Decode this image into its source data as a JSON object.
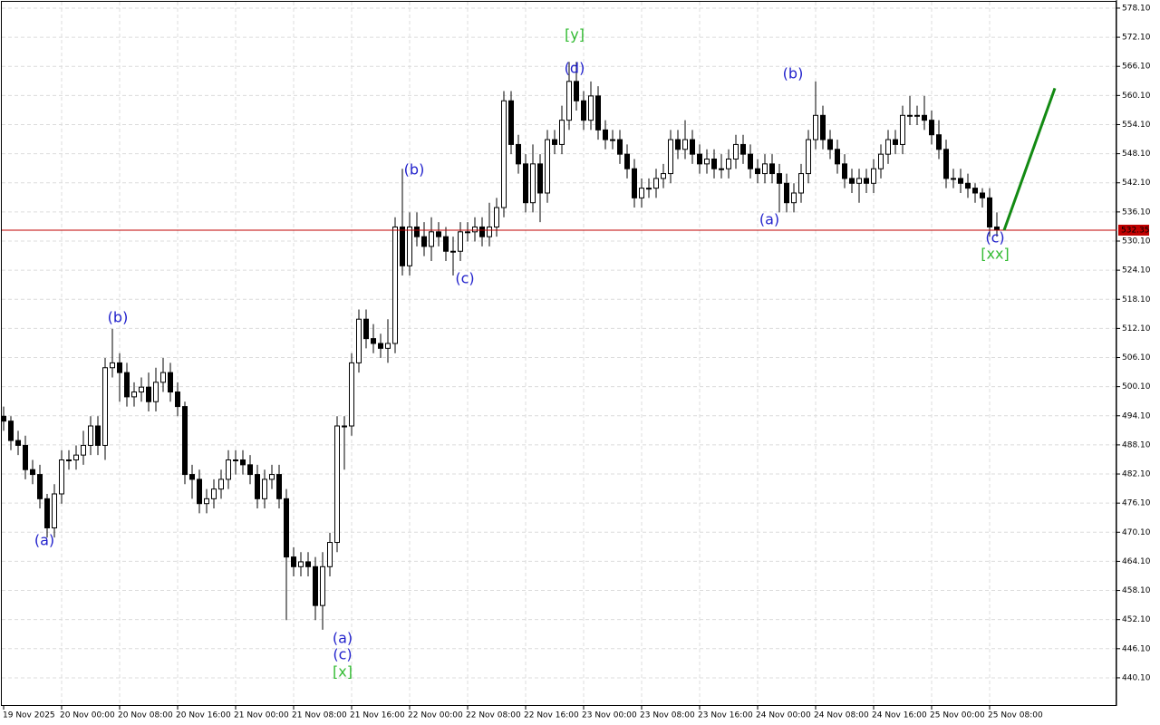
{
  "chart_data": {
    "type": "candlestick",
    "categories": [
      "19 Nov 2025",
      null,
      null,
      null,
      null,
      null,
      null,
      null,
      "20 Nov 00:00",
      null,
      null,
      null,
      null,
      null,
      null,
      null,
      "20 Nov 08:00",
      null,
      null,
      null,
      null,
      null,
      null,
      null,
      "20 Nov 16:00",
      null,
      null,
      null,
      null,
      null,
      null,
      null,
      "21 Nov 00:00",
      null,
      null,
      null,
      null,
      null,
      null,
      null,
      "21 Nov 08:00",
      null,
      null,
      null,
      null,
      null,
      null,
      null,
      "21 Nov 16:00",
      null,
      null,
      null,
      null,
      null,
      null,
      null,
      "22 Nov 00:00",
      null,
      null,
      null,
      null,
      null,
      null,
      null,
      "22 Nov 08:00",
      null,
      null,
      null,
      null,
      null,
      null,
      null,
      "22 Nov 16:00",
      null,
      null,
      null,
      null,
      null,
      null,
      null,
      "23 Nov 00:00",
      null,
      null,
      null,
      null,
      null,
      null,
      null,
      "23 Nov 08:00",
      null,
      null,
      null,
      null,
      null,
      null,
      null,
      "23 Nov 16:00",
      null,
      null,
      null,
      null,
      null,
      null,
      null,
      "24 Nov 00:00",
      null,
      null,
      null,
      null,
      null,
      null,
      null,
      "24 Nov 08:00",
      null,
      null,
      null,
      null,
      null,
      null,
      null,
      "24 Nov 16:00",
      null,
      null,
      null,
      null,
      null,
      null,
      null,
      "25 Nov 00:00",
      null,
      null,
      null,
      null,
      null,
      null,
      null,
      "25 Nov 08:00",
      null
    ],
    "open": [
      494,
      493,
      489,
      488,
      483,
      482,
      477,
      471,
      478,
      485,
      485,
      486,
      488,
      492,
      488,
      504,
      505,
      503,
      498,
      499,
      500,
      497,
      501,
      503,
      499,
      496,
      482,
      481,
      476,
      477,
      479,
      481,
      485,
      485,
      484,
      482,
      477,
      481,
      482,
      477,
      465,
      463,
      464,
      463,
      455,
      463,
      468,
      492,
      492,
      505,
      514,
      510,
      509,
      508,
      509,
      533,
      525,
      533,
      531,
      529,
      532,
      531,
      528,
      528,
      532,
      532,
      533,
      531,
      533,
      537,
      559,
      550,
      546,
      538,
      546,
      540,
      551,
      550,
      555,
      563,
      559,
      555,
      560,
      553,
      551,
      551,
      548,
      545,
      539,
      541,
      541,
      543,
      544,
      551,
      549,
      551,
      548,
      546,
      547,
      545,
      545,
      547,
      550,
      548,
      545,
      544,
      546,
      544,
      542,
      538,
      540,
      544,
      551,
      556,
      551,
      549,
      546,
      543,
      542,
      543,
      542,
      545,
      548,
      551,
      550,
      556,
      556,
      556,
      555,
      552,
      549,
      543,
      543,
      542,
      541,
      540,
      539,
      533
    ],
    "high": [
      496,
      494,
      491,
      490,
      485,
      484,
      478,
      480,
      487,
      487,
      488,
      491,
      494,
      494,
      506,
      512,
      507,
      505,
      501,
      502,
      503,
      504,
      506,
      505,
      501,
      497,
      484,
      483,
      479,
      481,
      483,
      487,
      487,
      487,
      486,
      484,
      483,
      484,
      484,
      479,
      467,
      466,
      466,
      465,
      466,
      470,
      494,
      494,
      507,
      516,
      516,
      513,
      511,
      514,
      535,
      545,
      536,
      536,
      534,
      535,
      534,
      533,
      531,
      534,
      534,
      535,
      535,
      538,
      539,
      561,
      561,
      552,
      548,
      550,
      548,
      553,
      553,
      558,
      567,
      567,
      561,
      563,
      562,
      555,
      553,
      553,
      550,
      547,
      543,
      543,
      545,
      546,
      553,
      553,
      555,
      553,
      550,
      549,
      549,
      548,
      549,
      552,
      552,
      550,
      547,
      548,
      548,
      546,
      544,
      542,
      546,
      553,
      563,
      558,
      553,
      551,
      548,
      545,
      545,
      545,
      547,
      550,
      553,
      553,
      558,
      560,
      558,
      560,
      557,
      555,
      551,
      545,
      545,
      544,
      542,
      541,
      541,
      536
    ],
    "low": [
      491,
      487,
      486,
      481,
      480,
      475,
      469,
      469,
      476,
      483,
      483,
      484,
      486,
      486,
      485,
      502,
      497,
      496,
      496,
      497,
      495,
      495,
      499,
      497,
      494,
      480,
      477,
      474,
      474,
      475,
      477,
      479,
      482,
      482,
      480,
      475,
      475,
      479,
      475,
      452,
      461,
      461,
      461,
      452,
      450,
      461,
      466,
      483,
      490,
      503,
      508,
      507,
      506,
      505,
      507,
      523,
      523,
      529,
      527,
      526,
      529,
      526,
      523,
      526,
      530,
      530,
      529,
      529,
      531,
      535,
      548,
      544,
      536,
      536,
      534,
      538,
      548,
      548,
      553,
      557,
      553,
      553,
      551,
      549,
      549,
      546,
      543,
      537,
      537,
      539,
      539,
      541,
      542,
      547,
      547,
      546,
      544,
      544,
      543,
      543,
      543,
      545,
      546,
      543,
      542,
      542,
      542,
      536,
      536,
      536,
      538,
      542,
      549,
      549,
      547,
      544,
      541,
      540,
      538,
      540,
      540,
      543,
      546,
      548,
      548,
      554,
      554,
      553,
      550,
      547,
      541,
      541,
      540,
      539,
      538,
      537,
      531,
      531
    ],
    "close": [
      493,
      489,
      488,
      483,
      482,
      477,
      471,
      478,
      485,
      485,
      486,
      488,
      492,
      488,
      504,
      505,
      503,
      498,
      499,
      500,
      497,
      501,
      503,
      499,
      496,
      482,
      481,
      476,
      477,
      479,
      481,
      485,
      485,
      484,
      482,
      477,
      481,
      482,
      477,
      465,
      463,
      464,
      463,
      455,
      463,
      468,
      492,
      492,
      505,
      514,
      510,
      509,
      508,
      509,
      533,
      525,
      533,
      531,
      529,
      532,
      531,
      528,
      528,
      532,
      532,
      533,
      531,
      533,
      537,
      559,
      550,
      546,
      538,
      546,
      540,
      551,
      550,
      555,
      563,
      559,
      555,
      560,
      553,
      551,
      551,
      548,
      545,
      539,
      541,
      541,
      543,
      544,
      551,
      549,
      551,
      548,
      546,
      547,
      545,
      545,
      547,
      550,
      548,
      545,
      544,
      546,
      544,
      542,
      538,
      540,
      544,
      551,
      556,
      551,
      549,
      546,
      543,
      542,
      543,
      542,
      545,
      548,
      551,
      550,
      556,
      556,
      556,
      555,
      552,
      549,
      543,
      543,
      542,
      541,
      540,
      539,
      533,
      532.35
    ],
    "up_color": "#ffffff",
    "down_color": "#000000",
    "ylim": [
      434.3,
      579.4
    ],
    "yticks": [
      {
        "value": 578.1,
        "label": "578.10"
      },
      {
        "value": 572.1,
        "label": "572.10"
      },
      {
        "value": 566.1,
        "label": "566.10"
      },
      {
        "value": 560.1,
        "label": "560.10"
      },
      {
        "value": 554.1,
        "label": "554.10"
      },
      {
        "value": 548.1,
        "label": "548.10"
      },
      {
        "value": 542.1,
        "label": "542.10"
      },
      {
        "value": 536.1,
        "label": "536.10"
      },
      {
        "value": 530.1,
        "label": "530.10"
      },
      {
        "value": 524.1,
        "label": "524.10"
      },
      {
        "value": 518.1,
        "label": "518.10"
      },
      {
        "value": 512.1,
        "label": "512.10"
      },
      {
        "value": 506.1,
        "label": "506.10"
      },
      {
        "value": 500.1,
        "label": "500.10"
      },
      {
        "value": 494.1,
        "label": "494.10"
      },
      {
        "value": 488.1,
        "label": "488.10"
      },
      {
        "value": 482.1,
        "label": "482.10"
      },
      {
        "value": 476.1,
        "label": "476.10"
      },
      {
        "value": 470.1,
        "label": "470.10"
      },
      {
        "value": 464.1,
        "label": "464.10"
      },
      {
        "value": 458.1,
        "label": "458.10"
      },
      {
        "value": 452.1,
        "label": "452.10"
      },
      {
        "value": 446.1,
        "label": "446.10"
      },
      {
        "value": 440.1,
        "label": "440.10"
      }
    ],
    "grid": true,
    "last_price": 532.35,
    "last_price_color": "#c00000",
    "projection": {
      "values": [
        532.35,
        561.6
      ],
      "color": "#138a13"
    },
    "annotations": [
      {
        "text": "(a)",
        "color": "#2222cc"
      },
      {
        "text": "(b)",
        "color": "#2222cc"
      },
      {
        "text": "(a)",
        "color": "#2222cc"
      },
      {
        "text": "(c)",
        "color": "#2222cc"
      },
      {
        "text": "[x]",
        "color": "#33bb33"
      },
      {
        "text": "(b)",
        "color": "#2222cc"
      },
      {
        "text": "(c)",
        "color": "#2222cc"
      },
      {
        "text": "(d)",
        "color": "#2222cc"
      },
      {
        "text": "[y]",
        "color": "#33bb33"
      },
      {
        "text": "(a)",
        "color": "#2222cc"
      },
      {
        "text": "(b)",
        "color": "#2222cc"
      },
      {
        "text": "(c)",
        "color": "#2222cc"
      },
      {
        "text": "[xx]",
        "color": "#33bb33"
      }
    ]
  }
}
